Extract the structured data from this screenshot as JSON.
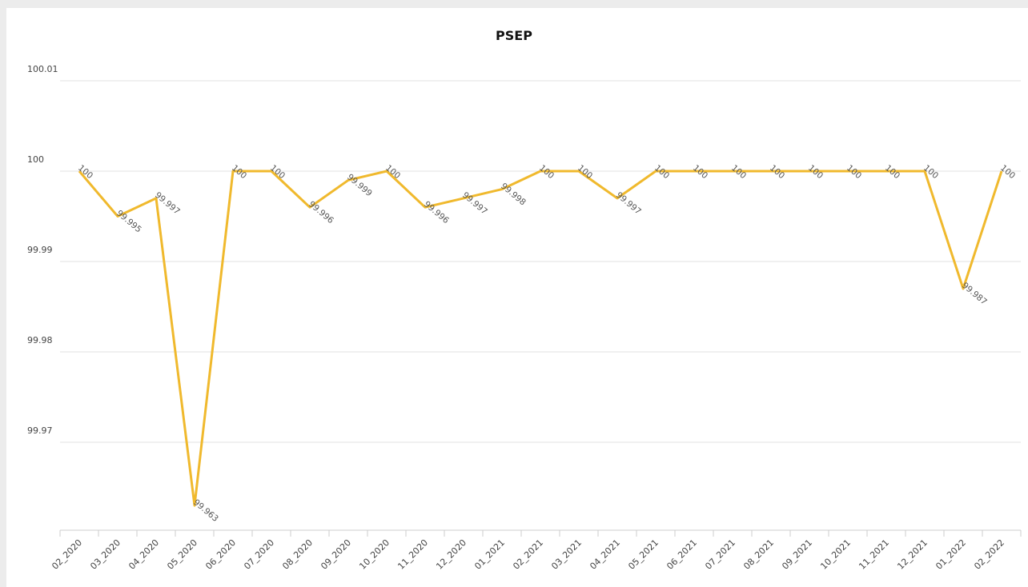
{
  "chart_data": {
    "type": "line",
    "title": "PSEP",
    "categories": [
      "02_2020",
      "03_2020",
      "04_2020",
      "05_2020",
      "06_2020",
      "07_2020",
      "08_2020",
      "09_2020",
      "10_2020",
      "11_2020",
      "12_2020",
      "01_2021",
      "02_2021",
      "03_2021",
      "04_2021",
      "05_2021",
      "06_2021",
      "07_2021",
      "08_2021",
      "09_2021",
      "10_2021",
      "11_2021",
      "12_2021",
      "01_2022",
      "02_2022"
    ],
    "series": [
      {
        "name": "PSEP",
        "color": "#f0b92d",
        "values": [
          100,
          99.995,
          99.997,
          99.963,
          100,
          100,
          99.996,
          99.999,
          100,
          99.996,
          99.997,
          99.998,
          100,
          100,
          99.997,
          100,
          100,
          100,
          100,
          100,
          100,
          100,
          100,
          99.987,
          100
        ]
      }
    ],
    "ylim": [
      99.96,
      100.01
    ],
    "yticks": [
      99.97,
      99.98,
      99.99,
      100,
      100.01
    ],
    "grid": true
  }
}
